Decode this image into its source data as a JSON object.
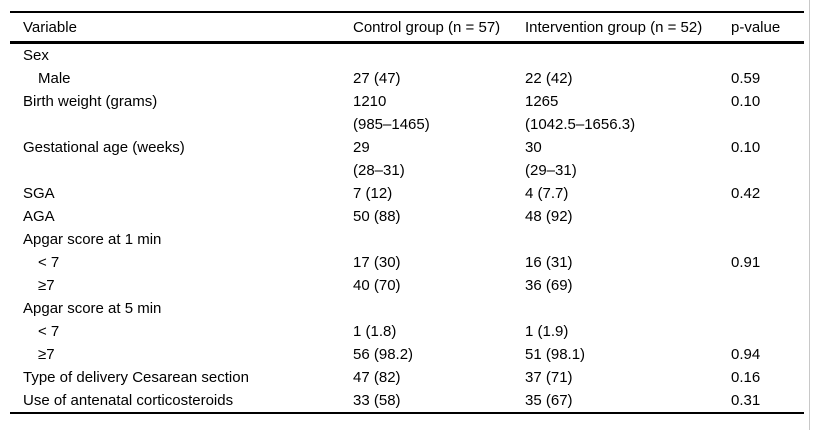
{
  "table": {
    "columns": [
      "Variable",
      "Control group (n = 57)",
      "Intervention group (n = 52)",
      "p-value"
    ],
    "rows": [
      {
        "variable": "Sex",
        "indent": false,
        "control": "",
        "intervention": "",
        "p": ""
      },
      {
        "variable": "Male",
        "indent": true,
        "control": "27 (47)",
        "intervention": "22 (42)",
        "p": "0.59"
      },
      {
        "variable": "Birth weight (grams)",
        "indent": false,
        "control": "1210",
        "intervention": "1265",
        "p": "0.10"
      },
      {
        "variable": "",
        "indent": false,
        "control": "(985–1465)",
        "intervention": "(1042.5–1656.3)",
        "p": ""
      },
      {
        "variable": "Gestational age (weeks)",
        "indent": false,
        "control": "29",
        "intervention": "30",
        "p": "0.10"
      },
      {
        "variable": "",
        "indent": false,
        "control": "(28–31)",
        "intervention": "(29–31)",
        "p": ""
      },
      {
        "variable": "SGA",
        "indent": false,
        "control": "7 (12)",
        "intervention": "4 (7.7)",
        "p": "0.42"
      },
      {
        "variable": "AGA",
        "indent": false,
        "control": "50 (88)",
        "intervention": "48 (92)",
        "p": ""
      },
      {
        "variable": "Apgar score at 1 min",
        "indent": false,
        "control": "",
        "intervention": "",
        "p": ""
      },
      {
        "variable": "< 7",
        "indent": true,
        "control": "17 (30)",
        "intervention": "16 (31)",
        "p": "0.91"
      },
      {
        "variable": "≥7",
        "indent": true,
        "control": "40 (70)",
        "intervention": "36 (69)",
        "p": ""
      },
      {
        "variable": "Apgar score at 5 min",
        "indent": false,
        "control": "",
        "intervention": "",
        "p": ""
      },
      {
        "variable": "< 7",
        "indent": true,
        "control": "1 (1.8)",
        "intervention": "1 (1.9)",
        "p": ""
      },
      {
        "variable": "≥7",
        "indent": true,
        "control": "56 (98.2)",
        "intervention": "51 (98.1)",
        "p": "0.94"
      },
      {
        "variable": "Type of delivery Cesarean section",
        "indent": false,
        "control": "47 (82)",
        "intervention": "37 (71)",
        "p": "0.16"
      },
      {
        "variable": "Use of antenatal corticosteroids",
        "indent": false,
        "control": "33 (58)",
        "intervention": "35 (67)",
        "p": "0.31"
      }
    ],
    "colors": {
      "text": "#000000",
      "rule": "#000000",
      "background": "#ffffff",
      "edge_line": "#c8c8c8"
    }
  }
}
